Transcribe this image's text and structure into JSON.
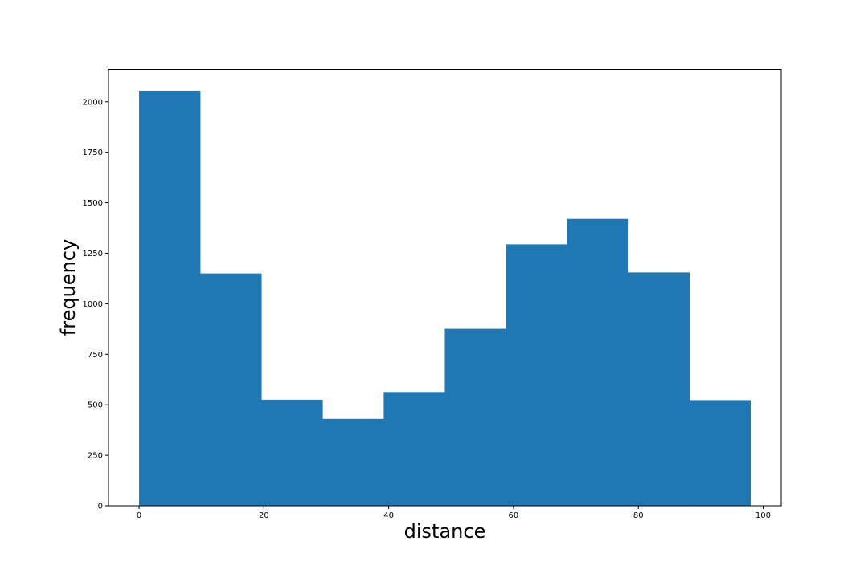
{
  "chart_data": {
    "type": "bar",
    "subtype": "histogram",
    "title": "",
    "xlabel": "distance",
    "ylabel": "frequency",
    "bins": [
      {
        "start": 0.0,
        "end": 9.8,
        "count": 2055
      },
      {
        "start": 9.8,
        "end": 19.6,
        "count": 1150
      },
      {
        "start": 19.6,
        "end": 29.4,
        "count": 525
      },
      {
        "start": 29.4,
        "end": 39.2,
        "count": 430
      },
      {
        "start": 39.2,
        "end": 49.0,
        "count": 563
      },
      {
        "start": 49.0,
        "end": 58.8,
        "count": 876
      },
      {
        "start": 58.8,
        "end": 68.6,
        "count": 1294
      },
      {
        "start": 68.6,
        "end": 78.4,
        "count": 1420
      },
      {
        "start": 78.4,
        "end": 88.2,
        "count": 1155
      },
      {
        "start": 88.2,
        "end": 98.0,
        "count": 523
      }
    ],
    "xlim": [
      -4.9,
      102.9
    ],
    "ylim": [
      0,
      2160
    ],
    "xticks": [
      0,
      20,
      40,
      60,
      80,
      100
    ],
    "yticks": [
      0,
      250,
      500,
      750,
      1000,
      1250,
      1500,
      1750,
      2000
    ],
    "xtick_labels": [
      "0",
      "20",
      "40",
      "60",
      "80",
      "100"
    ],
    "ytick_labels": [
      "0",
      "250",
      "500",
      "750",
      "1000",
      "1250",
      "1500",
      "1750",
      "2000"
    ],
    "bar_color": "#1f77b4",
    "grid": false,
    "legend": "none"
  }
}
